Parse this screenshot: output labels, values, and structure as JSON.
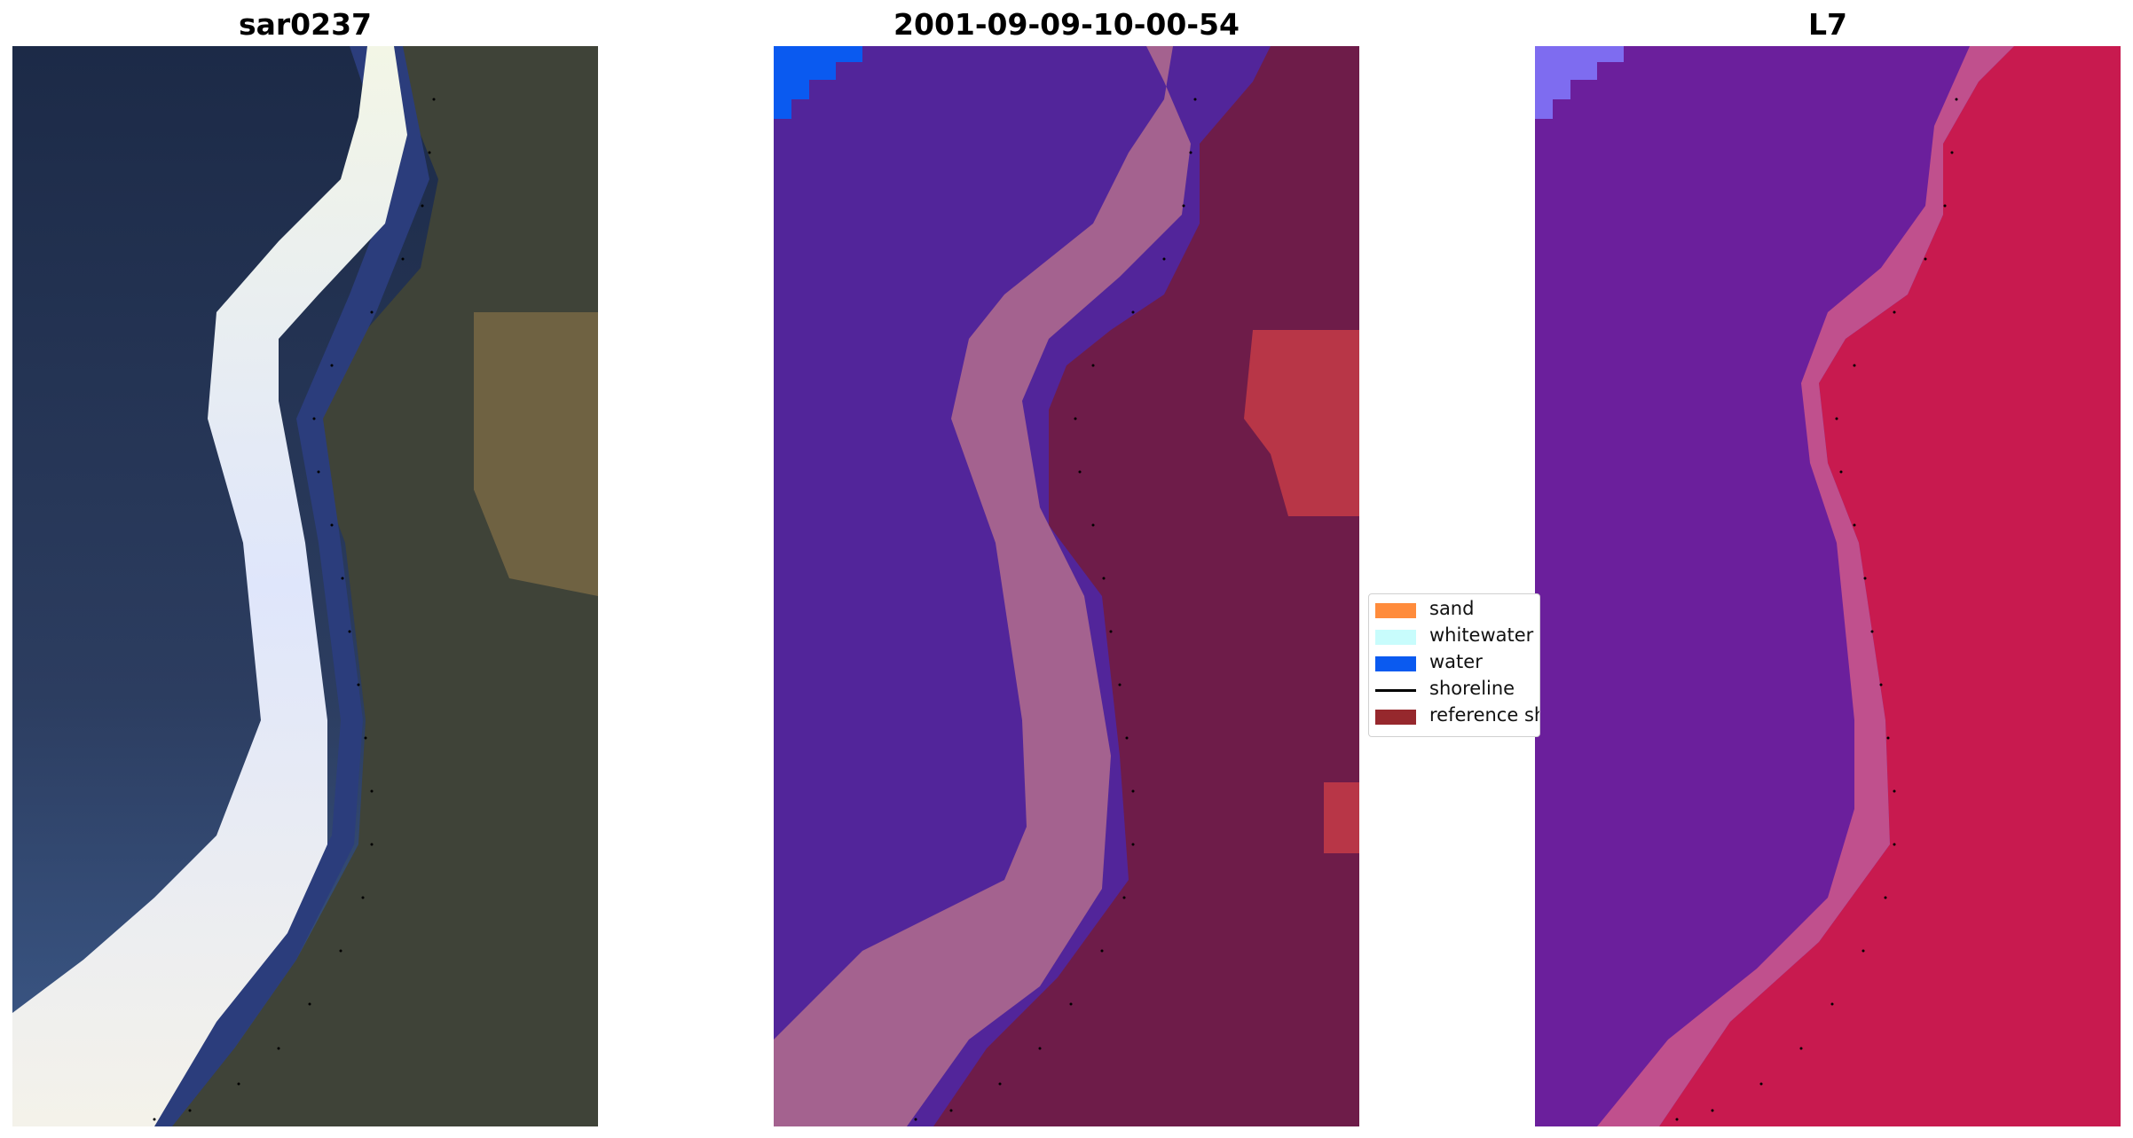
{
  "panels": [
    {
      "title": "sar0237"
    },
    {
      "title": "2001-09-09-10-00-54"
    },
    {
      "title": "L7"
    }
  ],
  "legend": {
    "items": [
      {
        "label": "sand",
        "color": "#ff8c3c",
        "kind": "patch"
      },
      {
        "label": "whitewater",
        "color": "#c8fcfc",
        "kind": "patch"
      },
      {
        "label": "water",
        "color": "#0a5af0",
        "kind": "patch"
      },
      {
        "label": "shoreline",
        "color": "#000000",
        "kind": "line"
      },
      {
        "label": "reference shoreline",
        "color": "#96282d",
        "kind": "patch"
      }
    ]
  },
  "colors": {
    "rgb_sea": "#29375a",
    "rgb_land": "#3f4338",
    "rgb_land_ochre": "#7c6a45",
    "rgb_foam": "#e9eefc",
    "rgb_dark_water": "#2b3d7c",
    "cls_water": "#52259a",
    "cls_whitewater": "#a4628f",
    "cls_land": "#6e1c49",
    "cls_red": "#b83647",
    "cls_blue": "#0a5af0",
    "mndwi_water": "#6b1f9c",
    "mndwi_mid": "#c0508d",
    "mndwi_land": "#c81a4f",
    "mndwi_corner": "#7e6cf0"
  }
}
